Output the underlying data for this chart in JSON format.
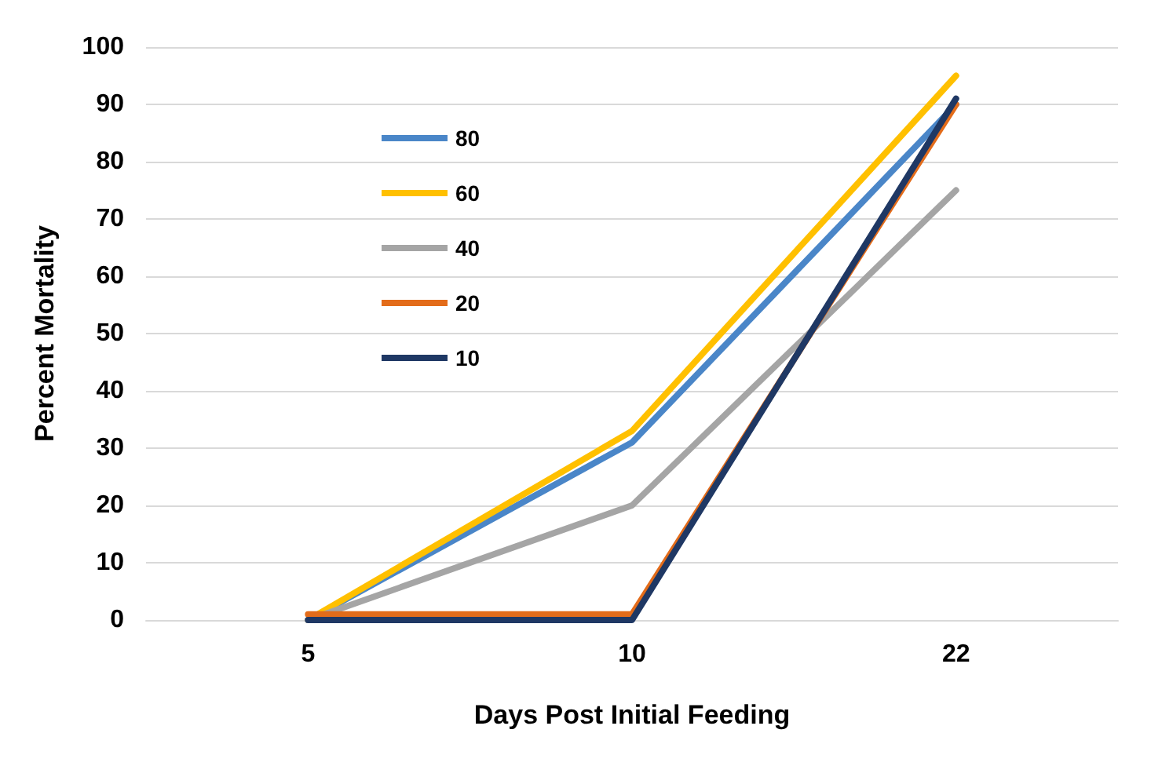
{
  "chart_data": {
    "type": "line",
    "xlabel": "Days Post Initial Feeding",
    "ylabel": "Percent Mortality",
    "categories": [
      "5",
      "10",
      "22"
    ],
    "series": [
      {
        "name": "80",
        "color": "#4a86c8",
        "values": [
          0,
          31,
          90
        ]
      },
      {
        "name": "60",
        "color": "#ffc000",
        "values": [
          0,
          33,
          95
        ]
      },
      {
        "name": "40",
        "color": "#a5a5a5",
        "values": [
          0,
          20,
          75
        ]
      },
      {
        "name": "20",
        "color": "#e36c1a",
        "values": [
          1,
          1,
          90
        ]
      },
      {
        "name": "10",
        "color": "#1f3864",
        "values": [
          0,
          0,
          91
        ]
      }
    ],
    "ylim": [
      0,
      100
    ],
    "yticks": [
      0,
      10,
      20,
      30,
      40,
      50,
      60,
      70,
      80,
      90,
      100
    ],
    "grid": "y",
    "legend": "top left",
    "marker": "none",
    "line_style": "solid"
  }
}
